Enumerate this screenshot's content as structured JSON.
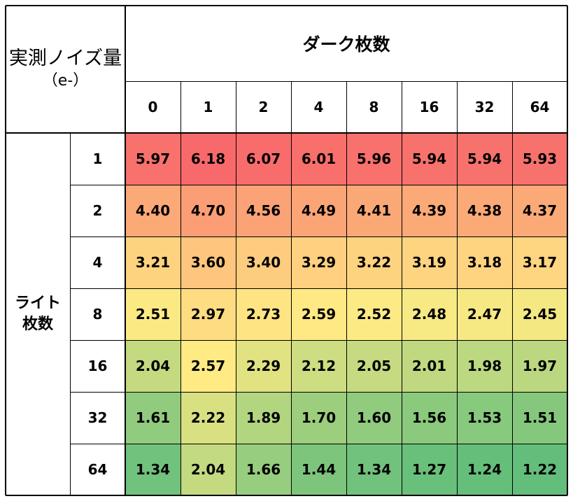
{
  "chart_data": {
    "type": "heatmap",
    "corner_title": "実測ノイズ量",
    "corner_unit": "（e-）",
    "x_title": "ダーク枚数",
    "y_title_lines": [
      "ライト",
      "枚数"
    ],
    "x_labels": [
      "0",
      "1",
      "2",
      "4",
      "8",
      "16",
      "32",
      "64"
    ],
    "y_labels": [
      "1",
      "2",
      "4",
      "8",
      "16",
      "32",
      "64"
    ],
    "values": [
      [
        "5.97",
        "6.18",
        "6.07",
        "6.01",
        "5.96",
        "5.94",
        "5.94",
        "5.93"
      ],
      [
        "4.40",
        "4.70",
        "4.56",
        "4.49",
        "4.41",
        "4.39",
        "4.38",
        "4.37"
      ],
      [
        "3.21",
        "3.60",
        "3.40",
        "3.29",
        "3.22",
        "3.19",
        "3.18",
        "3.17"
      ],
      [
        "2.51",
        "2.97",
        "2.73",
        "2.59",
        "2.52",
        "2.48",
        "2.47",
        "2.45"
      ],
      [
        "2.04",
        "2.57",
        "2.29",
        "2.12",
        "2.05",
        "2.01",
        "1.98",
        "1.97"
      ],
      [
        "1.61",
        "2.22",
        "1.89",
        "1.70",
        "1.60",
        "1.56",
        "1.53",
        "1.51"
      ],
      [
        "1.34",
        "2.04",
        "1.66",
        "1.44",
        "1.34",
        "1.27",
        "1.24",
        "1.22"
      ]
    ],
    "color_scale": {
      "min_color": "#63be7b",
      "mid_color": "#ffeb84",
      "max_color": "#f8696b"
    }
  }
}
